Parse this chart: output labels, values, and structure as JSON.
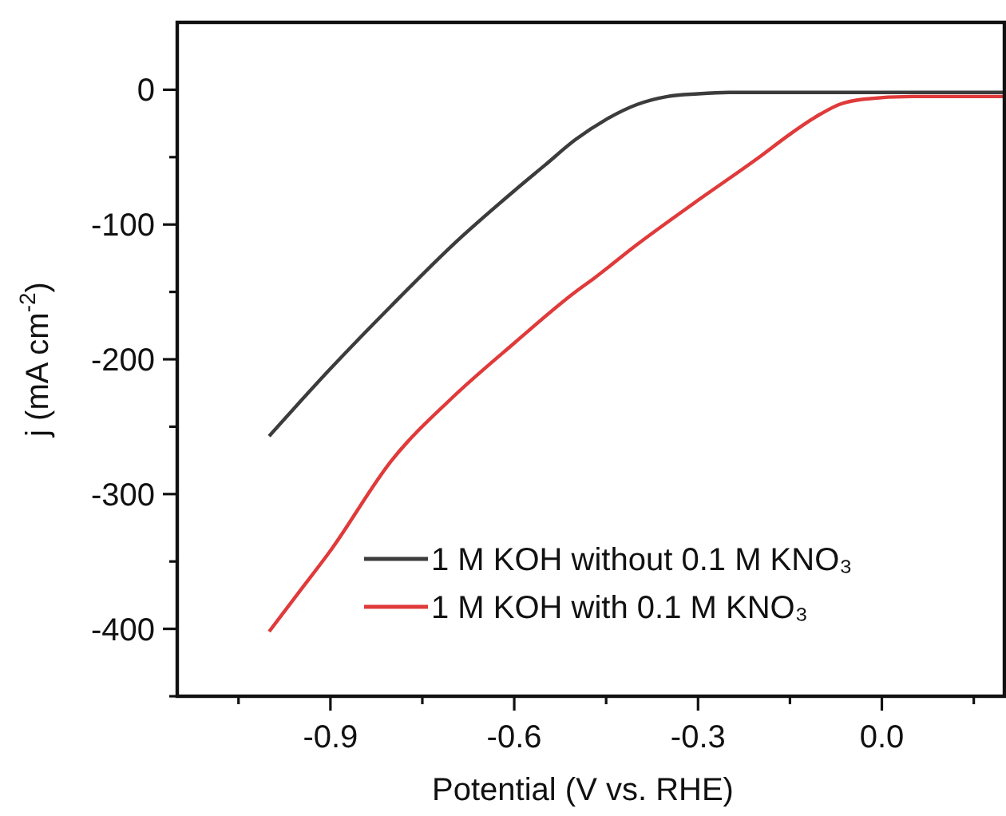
{
  "chart_data": {
    "type": "line",
    "xlabel": "Potential (V vs. RHE)",
    "ylabel": "j (mA cm$^{-2}$)",
    "xlim": [
      -1.15,
      0.2
    ],
    "ylim": [
      -450,
      50
    ],
    "xticks": [
      {
        "value": -1.05,
        "label": null
      },
      -0.9,
      {
        "value": -0.75,
        "label": null
      },
      -0.6,
      {
        "value": -0.45,
        "label": null
      },
      -0.3,
      {
        "value": -0.15,
        "label": null
      },
      {
        "value": 0,
        "label": "0.0"
      },
      {
        "value": 0.15,
        "label": null
      }
    ],
    "yticks": [
      {
        "value": -450,
        "label": null
      },
      -400,
      {
        "value": -350,
        "label": null
      },
      -300,
      {
        "value": -250,
        "label": null
      },
      -200,
      {
        "value": -150,
        "label": null
      },
      -100,
      {
        "value": -50,
        "label": null
      },
      0
    ],
    "grid": false,
    "legend": "bottom right",
    "line_style": "solid",
    "series": [
      {
        "name": "1 M KOH without 0.1 M KNO₃",
        "color": "#3c3c3c",
        "x": [
          -1.0,
          -0.9,
          -0.8,
          -0.7,
          -0.6,
          -0.55,
          -0.5,
          -0.45,
          -0.4,
          -0.35,
          -0.3,
          -0.25,
          0,
          0.2
        ],
        "values": [
          -257,
          -207,
          -160,
          -115,
          -75,
          -56,
          -37,
          -22,
          -11,
          -5,
          -3,
          -2,
          -2,
          -2
        ]
      },
      {
        "name": "1 M KOH with 0.1 M KNO₃",
        "color": "#e03a3a",
        "x": [
          -1.0,
          -0.95,
          -0.9,
          -0.8,
          -0.7,
          -0.6,
          -0.5,
          -0.47,
          -0.4,
          -0.3,
          -0.2,
          -0.15,
          -0.1,
          -0.07,
          -0.03,
          0.05,
          0.2
        ],
        "values": [
          -402,
          -372,
          -342,
          -275,
          -228,
          -188,
          -150,
          -140,
          -115,
          -82,
          -50,
          -33,
          -18,
          -11,
          -7,
          -5,
          -5
        ]
      }
    ]
  }
}
